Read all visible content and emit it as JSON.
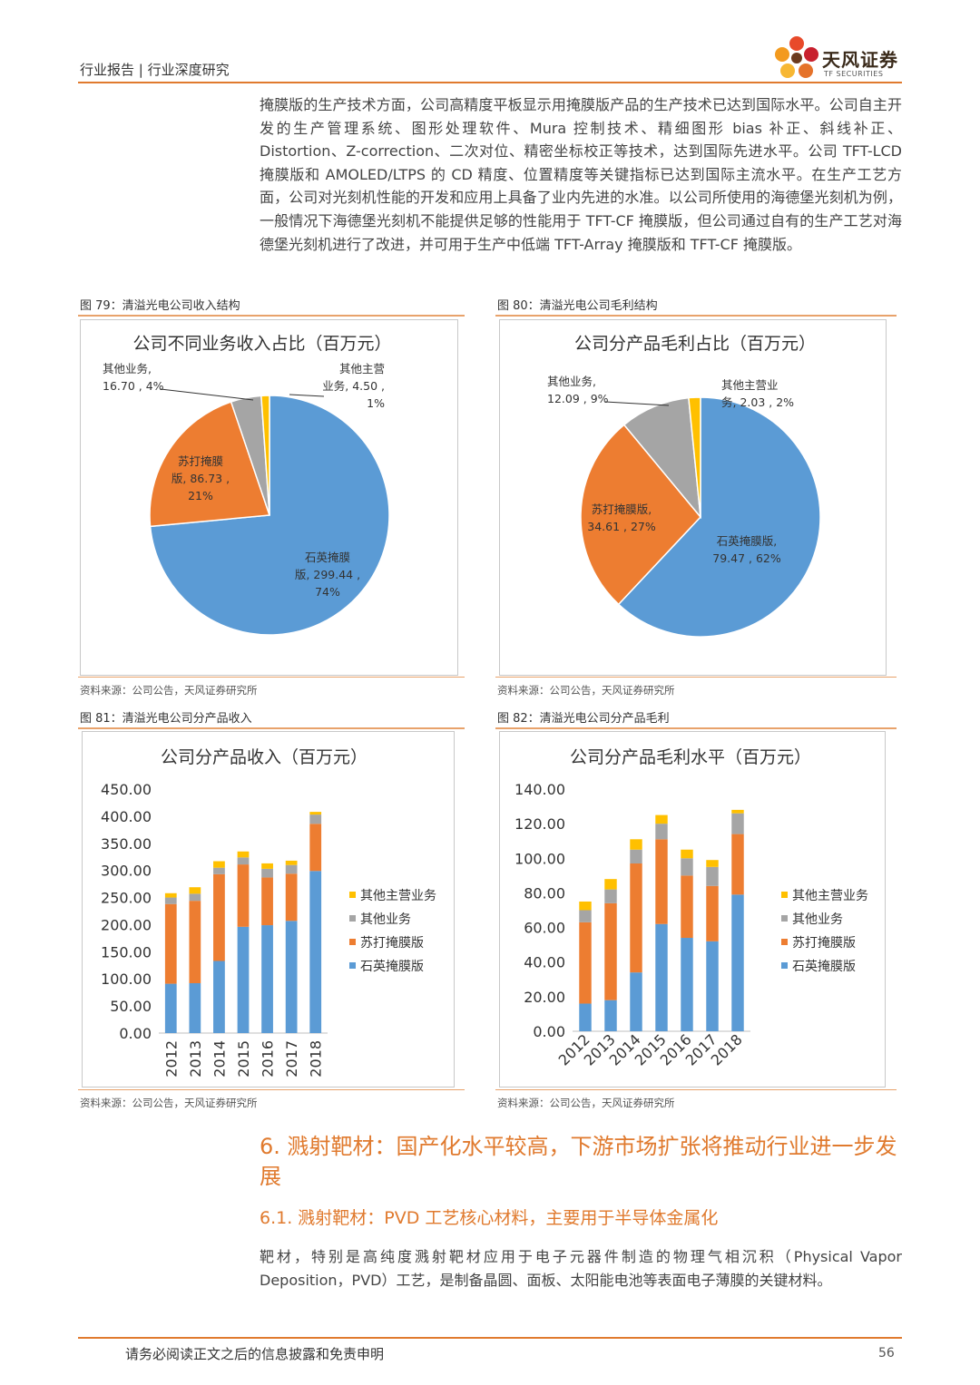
{
  "header": {
    "left_text": "行业报告 | 行业深度研究",
    "logo_name": "天风证券",
    "logo_sub": "TF SECURITIES"
  },
  "intro": "掩膜版的生产技术方面，公司高精度平板显示用掩膜版产品的生产技术已达到国际水平。公司自主开发的生产管理系统、图形处理软件、Mura 控制技术、精细图形 bias 补正、斜线补正、Distortion、Z-correction、二次对位、精密坐标校正等技术，达到国际先进水平。公司 TFT-LCD 掩膜版和 AMOLED/LTPS 的 CD 精度、位置精度等关键指标已达到国际主流水平。在生产工艺方面，公司对光刻机性能的开发和应用上具备了业内先进的水准。以公司所使用的海德堡光刻机为例，一般情况下海德堡光刻机不能提供足够的性能用于 TFT-CF 掩膜版，但公司通过自有的生产工艺对海德堡光刻机进行了改进，并可用于生产中低端 TFT-Array 掩膜版和 TFT-CF 掩膜版。",
  "figures": {
    "fig79": {
      "caption": "图 79：清溢光电公司收入结构",
      "source": "资料来源：公司公告，天风证券研究所"
    },
    "fig80": {
      "caption": "图 80：清溢光电公司毛利结构",
      "source": "资料来源：公司公告，天风证券研究所"
    },
    "fig81": {
      "caption": "图 81：清溢光电公司分产品收入",
      "source": "资料来源：公司公告，天风证券研究所"
    },
    "fig82": {
      "caption": "图 82：清溢光电公司分产品毛利",
      "source": "资料来源：公司公告，天风证券研究所"
    }
  },
  "colors": {
    "quartz": "#5b9bd5",
    "soda": "#ed7d31",
    "other": "#a5a5a5",
    "other_main": "#ffc000",
    "accent": "#e07a2e"
  },
  "chart_data": [
    {
      "type": "pie",
      "title": "公司不同业务收入占比（百万元）",
      "slices": [
        {
          "name": "石英掩膜版",
          "value": 299.44,
          "percent": "74%",
          "label_lines": [
            "石英掩膜",
            "版, 299.44 ,",
            "74%"
          ]
        },
        {
          "name": "苏打掩膜版",
          "value": 86.73,
          "percent": "21%",
          "label_lines": [
            "苏打掩膜",
            "版, 86.73 ,",
            "21%"
          ]
        },
        {
          "name": "其他业务",
          "value": 16.7,
          "percent": "4%",
          "label_lines": [
            "其他业务,",
            "16.70 , 4%"
          ]
        },
        {
          "name": "其他主营业务",
          "value": 4.5,
          "percent": "1%",
          "label_lines": [
            "其他主营",
            "业务, 4.50 ,",
            "1%"
          ]
        }
      ]
    },
    {
      "type": "pie",
      "title": "公司分产品毛利占比（百万元）",
      "slices": [
        {
          "name": "石英掩膜版",
          "value": 79.47,
          "percent": "62%",
          "label_lines": [
            "石英掩膜版,",
            "79.47 , 62%"
          ]
        },
        {
          "name": "苏打掩膜版",
          "value": 34.61,
          "percent": "27%",
          "label_lines": [
            "苏打掩膜版,",
            "34.61 , 27%"
          ]
        },
        {
          "name": "其他业务",
          "value": 12.09,
          "percent": "9%",
          "label_lines": [
            "其他业务,",
            "12.09 , 9%"
          ]
        },
        {
          "name": "其他主营业务",
          "value": 2.03,
          "percent": "2%",
          "label_lines": [
            "其他主营业",
            "务, 2.03 , 2%"
          ]
        }
      ]
    },
    {
      "type": "bar",
      "stacked": true,
      "title": "公司分产品收入（百万元）",
      "categories": [
        "2012",
        "2013",
        "2014",
        "2015",
        "2016",
        "2017",
        "2018"
      ],
      "ylim": [
        0,
        450
      ],
      "yticks": [
        "0.00",
        "50.00",
        "100.00",
        "150.00",
        "200.00",
        "250.00",
        "300.00",
        "350.00",
        "400.00",
        "450.00"
      ],
      "legend_position": "right",
      "series": [
        {
          "name": "石英掩膜版",
          "values": [
            91,
            92,
            133,
            196,
            199,
            207,
            299
          ]
        },
        {
          "name": "苏打掩膜版",
          "values": [
            147,
            152,
            160,
            115,
            88,
            87,
            87
          ]
        },
        {
          "name": "其他业务",
          "values": [
            12,
            13,
            12,
            13,
            16,
            16,
            17
          ]
        },
        {
          "name": "其他主营业务",
          "values": [
            8,
            12,
            12,
            11,
            10,
            8,
            5
          ]
        }
      ]
    },
    {
      "type": "bar",
      "stacked": true,
      "title": "公司分产品毛利水平（百万元）",
      "categories": [
        "2012",
        "2013",
        "2014",
        "2015",
        "2016",
        "2017",
        "2018"
      ],
      "ylim": [
        0,
        140
      ],
      "yticks": [
        "0.00",
        "20.00",
        "40.00",
        "60.00",
        "80.00",
        "100.00",
        "120.00",
        "140.00"
      ],
      "legend_position": "right",
      "series": [
        {
          "name": "石英掩膜版",
          "values": [
            16,
            18,
            34,
            62,
            54,
            52,
            79
          ]
        },
        {
          "name": "苏打掩膜版",
          "values": [
            47,
            56,
            63,
            49,
            36,
            32,
            35
          ]
        },
        {
          "name": "其他业务",
          "values": [
            7,
            8,
            8,
            9,
            10,
            11,
            12
          ]
        },
        {
          "name": "其他主营业务",
          "values": [
            5,
            6,
            6,
            5,
            5,
            4,
            2
          ]
        }
      ]
    }
  ],
  "section6": {
    "title": "6. 溅射靶材：国产化水平较高，下游市场扩张将推动行业进一步发展"
  },
  "section61": {
    "title": "6.1. 溅射靶材：PVD 工艺核心材料，主要用于半导体金属化"
  },
  "body2": "靶材，特别是高纯度溅射靶材应用于电子元器件制造的物理气相沉积（Physical Vapor Deposition，PVD）工艺，是制备晶圆、面板、太阳能电池等表面电子薄膜的关键材料。",
  "footer": {
    "disclaimer": "请务必阅读正文之后的信息披露和免责申明",
    "page": "56"
  }
}
